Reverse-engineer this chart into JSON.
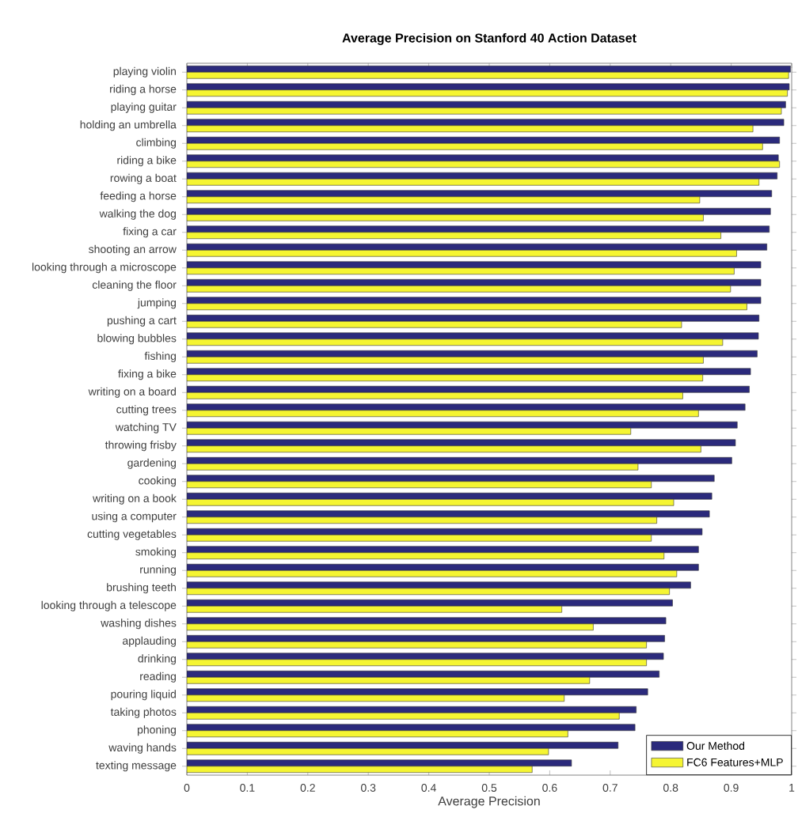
{
  "chart_data": {
    "type": "bar",
    "orientation": "horizontal",
    "title": "Average Precision on Stanford 40 Action Dataset",
    "xlabel": "Average Precision",
    "categories": [
      "playing violin",
      "riding a horse",
      "playing guitar",
      "holding an umbrella",
      "climbing",
      "riding a bike",
      "rowing a boat",
      "feeding a horse",
      "walking the dog",
      "fixing a car",
      "shooting an arrow",
      "looking through a microscope",
      "cleaning the floor",
      "jumping",
      "pushing a cart",
      "blowing bubbles",
      "fishing",
      "fixing a bike",
      "writing on a board",
      "cutting trees",
      "watching TV",
      "throwing frisby",
      "gardening",
      "cooking",
      "writing on a book",
      "using a computer",
      "cutting vegetables",
      "smoking",
      "running",
      "brushing teeth",
      "looking through a telescope",
      "washing dishes",
      "applauding",
      "drinking",
      "reading",
      "pouring liquid",
      "taking photos",
      "phoning",
      "waving hands",
      "texting message"
    ],
    "series": [
      {
        "name": "Our Method",
        "color": "#2b2a7c",
        "values": [
          0.998,
          0.996,
          0.99,
          0.987,
          0.98,
          0.978,
          0.976,
          0.967,
          0.965,
          0.963,
          0.959,
          0.949,
          0.949,
          0.949,
          0.946,
          0.945,
          0.943,
          0.932,
          0.93,
          0.923,
          0.91,
          0.907,
          0.901,
          0.872,
          0.868,
          0.864,
          0.852,
          0.846,
          0.846,
          0.833,
          0.803,
          0.792,
          0.79,
          0.788,
          0.781,
          0.762,
          0.743,
          0.741,
          0.713,
          0.636
        ]
      },
      {
        "name": "FC6 Features+MLP",
        "color": "#f5f532",
        "values": [
          0.995,
          0.993,
          0.983,
          0.936,
          0.952,
          0.98,
          0.946,
          0.848,
          0.854,
          0.883,
          0.909,
          0.905,
          0.899,
          0.926,
          0.818,
          0.886,
          0.854,
          0.853,
          0.82,
          0.846,
          0.734,
          0.85,
          0.746,
          0.768,
          0.805,
          0.777,
          0.768,
          0.789,
          0.81,
          0.798,
          0.62,
          0.672,
          0.76,
          0.76,
          0.666,
          0.624,
          0.715,
          0.63,
          0.598,
          0.571
        ]
      }
    ],
    "xlim": [
      0,
      1
    ],
    "xticks": [
      0,
      0.1,
      0.2,
      0.3,
      0.4,
      0.5,
      0.6,
      0.7,
      0.8,
      0.9,
      1
    ],
    "legend": "bottom right"
  }
}
